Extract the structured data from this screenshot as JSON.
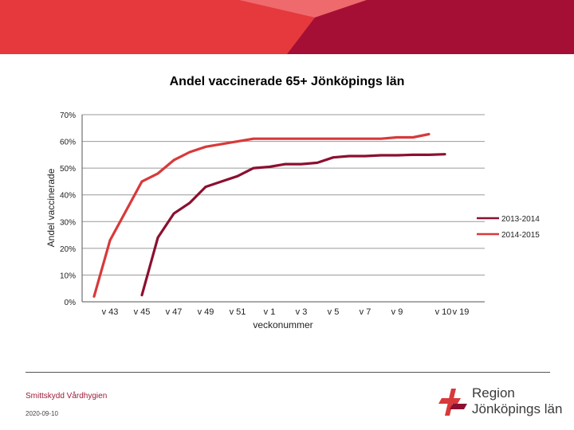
{
  "colors": {
    "banner_red": "#e5393d",
    "banner_crimson": "#a50f35",
    "banner_light": "#ee6a6d"
  },
  "page": {
    "title": "Andel vaccinerade 65+ Jönköpings län"
  },
  "chart_data": {
    "type": "line",
    "title": "Andel vaccinerade 65+ Jönköpings län",
    "xlabel": "veckonummer",
    "ylabel": "Andel vaccinerade",
    "ylim": [
      0,
      0.7
    ],
    "yticks": [
      "0%",
      "10%",
      "20%",
      "30%",
      "40%",
      "50%",
      "60%",
      "70%"
    ],
    "xtick_labels": [
      "v 43",
      "v 45",
      "v 47",
      "v 49",
      "v 51",
      "v 1",
      "v 3",
      "v 5",
      "v 7",
      "v 9",
      "v 10",
      "v 19"
    ],
    "x_count": 24,
    "grid": true,
    "legend": "right",
    "series": [
      {
        "name": "2013-2014",
        "color": "#8b1030",
        "values": [
          null,
          null,
          null,
          0.025,
          0.24,
          0.33,
          0.37,
          0.43,
          0.45,
          0.47,
          0.5,
          0.505,
          0.515,
          0.515,
          0.52,
          0.54,
          0.545,
          0.545,
          0.548,
          0.548,
          0.55,
          0.55,
          0.552,
          null
        ]
      },
      {
        "name": "2014-2015",
        "color": "#d8393a",
        "values": [
          0.02,
          0.23,
          0.34,
          0.45,
          0.48,
          0.53,
          0.56,
          0.58,
          0.59,
          0.6,
          0.61,
          0.61,
          0.61,
          0.61,
          0.61,
          0.61,
          0.61,
          0.61,
          0.61,
          0.615,
          0.615,
          0.627,
          null,
          null
        ]
      }
    ]
  },
  "footer": {
    "org": "Smittskydd Vårdhygien",
    "date": "2020-09-10",
    "logo_line1": "Region",
    "logo_line2": "Jönköpings län"
  }
}
